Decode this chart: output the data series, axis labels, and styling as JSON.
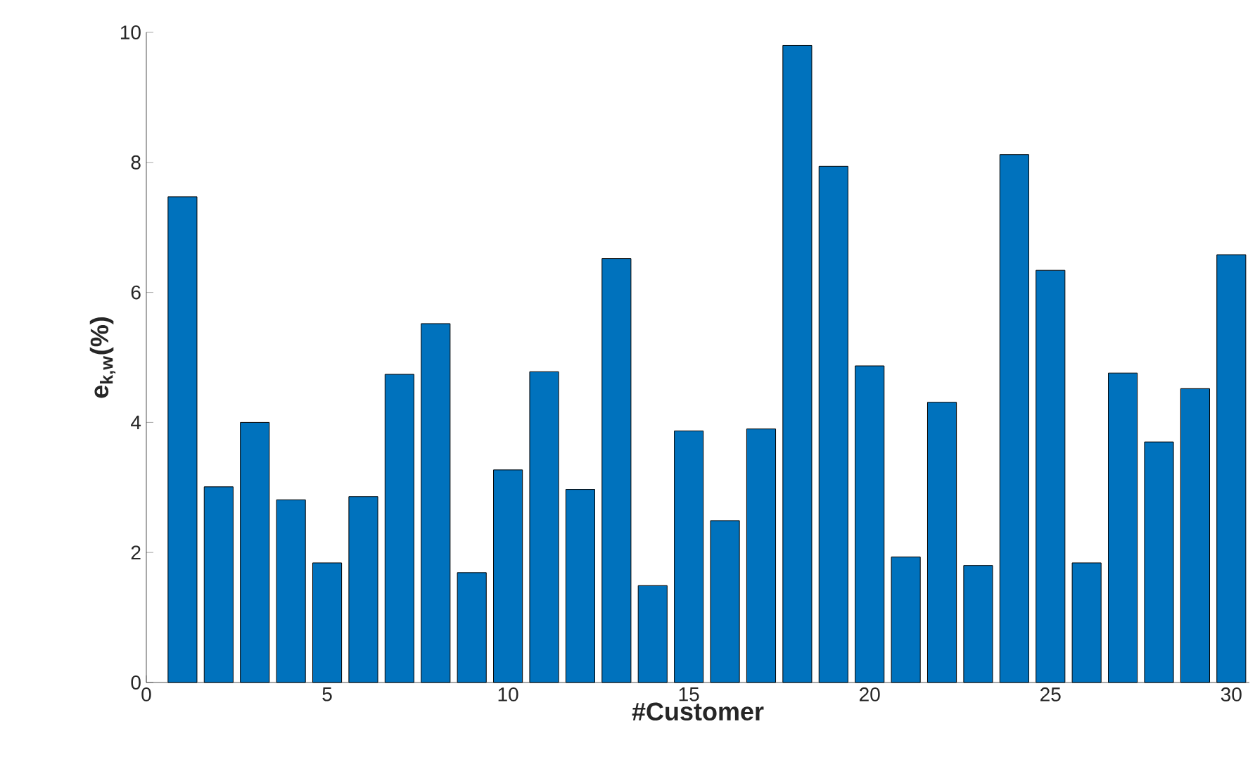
{
  "chart_data": {
    "type": "bar",
    "xlabel": "#Customer",
    "ylabel": "e$_{k,w}$(%)",
    "x": [
      1,
      2,
      3,
      4,
      5,
      6,
      7,
      8,
      9,
      10,
      11,
      12,
      13,
      14,
      15,
      16,
      17,
      18,
      19,
      20,
      21,
      22,
      23,
      24,
      25,
      26,
      27,
      28,
      29,
      30
    ],
    "values": [
      7.47,
      3.01,
      4.0,
      2.81,
      1.84,
      2.86,
      4.74,
      5.52,
      1.69,
      3.27,
      4.78,
      2.97,
      6.52,
      1.49,
      3.87,
      2.49,
      3.9,
      9.8,
      7.94,
      4.87,
      1.93,
      4.31,
      1.8,
      8.12,
      6.34,
      1.84,
      4.76,
      3.7,
      4.52,
      6.58
    ],
    "color": "#0072bd",
    "xlim": [
      0,
      30.5
    ],
    "ylim": [
      0,
      10
    ],
    "xticks": [
      0,
      5,
      10,
      15,
      20,
      25,
      30
    ],
    "yticks": [
      0,
      2,
      4,
      6,
      8,
      10
    ]
  }
}
